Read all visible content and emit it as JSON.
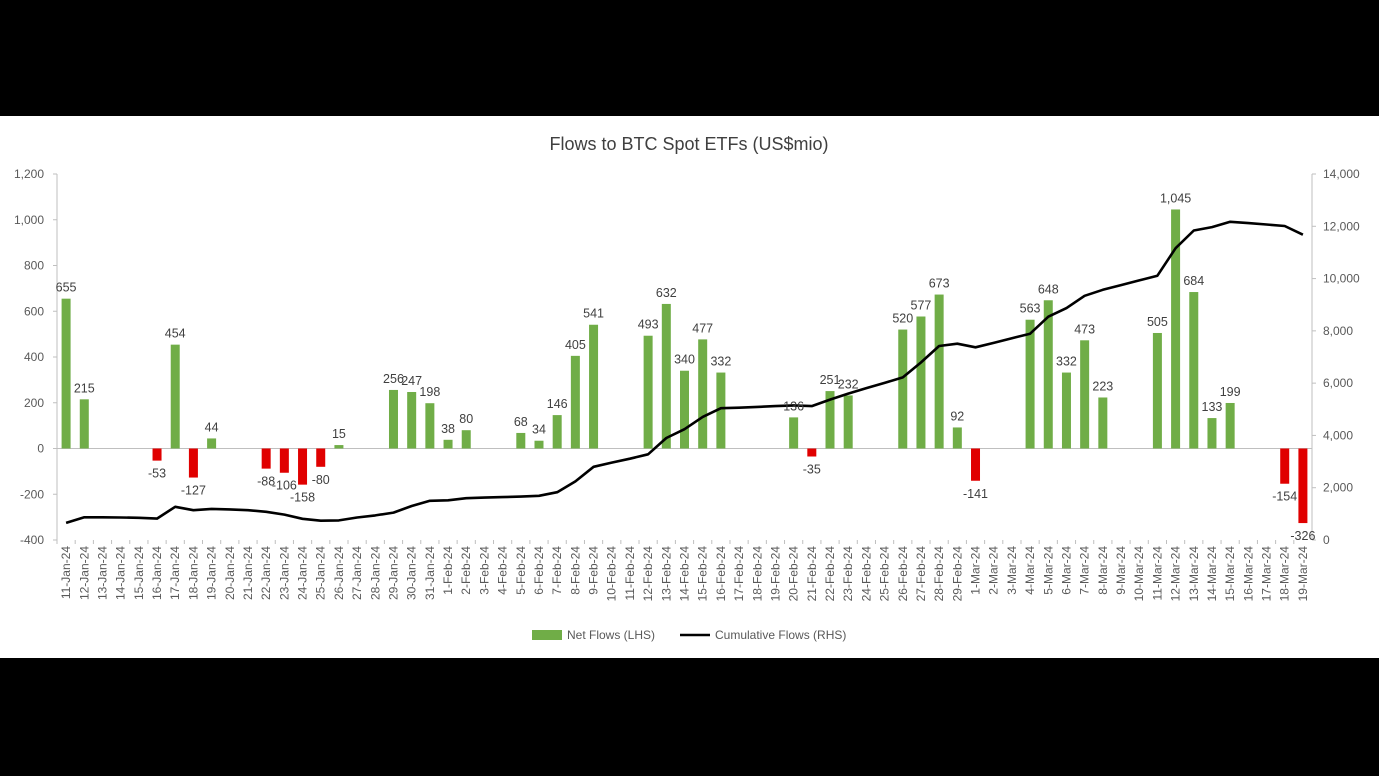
{
  "chart_data": {
    "type": "bar",
    "title": "Flows to BTC Spot ETFs (US$mio)",
    "categories": [
      "11-Jan-24",
      "12-Jan-24",
      "13-Jan-24",
      "14-Jan-24",
      "15-Jan-24",
      "16-Jan-24",
      "17-Jan-24",
      "18-Jan-24",
      "19-Jan-24",
      "20-Jan-24",
      "21-Jan-24",
      "22-Jan-24",
      "23-Jan-24",
      "24-Jan-24",
      "25-Jan-24",
      "26-Jan-24",
      "27-Jan-24",
      "28-Jan-24",
      "29-Jan-24",
      "30-Jan-24",
      "31-Jan-24",
      "1-Feb-24",
      "2-Feb-24",
      "3-Feb-24",
      "4-Feb-24",
      "5-Feb-24",
      "6-Feb-24",
      "7-Feb-24",
      "8-Feb-24",
      "9-Feb-24",
      "10-Feb-24",
      "11-Feb-24",
      "12-Feb-24",
      "13-Feb-24",
      "14-Feb-24",
      "15-Feb-24",
      "16-Feb-24",
      "17-Feb-24",
      "18-Feb-24",
      "19-Feb-24",
      "20-Feb-24",
      "21-Feb-24",
      "22-Feb-24",
      "23-Feb-24",
      "24-Feb-24",
      "25-Feb-24",
      "26-Feb-24",
      "27-Feb-24",
      "28-Feb-24",
      "29-Feb-24",
      "1-Mar-24",
      "2-Mar-24",
      "3-Mar-24",
      "4-Mar-24",
      "5-Mar-24",
      "6-Mar-24",
      "7-Mar-24",
      "8-Mar-24",
      "9-Mar-24",
      "10-Mar-24",
      "11-Mar-24",
      "12-Mar-24",
      "13-Mar-24",
      "14-Mar-24",
      "15-Mar-24",
      "16-Mar-24",
      "17-Mar-24",
      "18-Mar-24",
      "19-Mar-24"
    ],
    "series": [
      {
        "name": "Net Flows (LHS)",
        "axis": "left",
        "values": [
          655,
          215,
          null,
          null,
          null,
          -53,
          454,
          -127,
          44,
          null,
          null,
          -88,
          -106,
          -158,
          -80,
          15,
          null,
          null,
          256,
          247,
          198,
          38,
          80,
          null,
          null,
          68,
          34,
          146,
          405,
          541,
          null,
          null,
          493,
          632,
          340,
          477,
          332,
          null,
          null,
          null,
          136,
          -35,
          251,
          232,
          null,
          null,
          520,
          577,
          673,
          92,
          -141,
          null,
          null,
          563,
          648,
          332,
          473,
          223,
          null,
          null,
          505,
          1045,
          684,
          133,
          199,
          null,
          null,
          -154,
          -326
        ],
        "labels": [
          "655",
          "215",
          "",
          "",
          "",
          "-53",
          "454",
          "-127",
          "44",
          "",
          "",
          "-88",
          "-106",
          "-158",
          "-80",
          "15",
          "",
          "",
          "256",
          "247",
          "198",
          "38",
          "80",
          "",
          "",
          "68",
          "34",
          "146",
          "405",
          "541",
          "",
          "",
          "493",
          "632",
          "340",
          "477",
          "332",
          "",
          "",
          "",
          "136",
          "-35",
          "251",
          "232",
          "",
          "",
          "520",
          "577",
          "673",
          "92",
          "-141",
          "",
          "",
          "563",
          "648",
          "332",
          "473",
          "223",
          "",
          "",
          "505",
          "1,045",
          "684",
          "133",
          "199",
          "",
          "",
          "-154",
          "-326"
        ],
        "positive_color": "#70AD47",
        "negative_color": "#E00000"
      },
      {
        "name": "Cumulative Flows (RHS)",
        "axis": "right",
        "type": "line",
        "color": "#000000",
        "values": [
          655,
          870,
          870,
          860,
          850,
          820,
          1270,
          1140,
          1190,
          1170,
          1140,
          1080,
          970,
          810,
          740,
          750,
          860,
          940,
          1050,
          1300,
          1500,
          1520,
          1600,
          1620,
          1640,
          1660,
          1690,
          1830,
          2240,
          2800,
          2960,
          3110,
          3280,
          3900,
          4240,
          4710,
          5040,
          5060,
          5090,
          5120,
          5150,
          5120,
          5370,
          5600,
          5810,
          6010,
          6220,
          6790,
          7420,
          7510,
          7370,
          7540,
          7720,
          7890,
          8540,
          8870,
          9340,
          9570,
          9750,
          9930,
          10110,
          11160,
          11840,
          11970,
          12170,
          12120,
          12070,
          12010,
          11680
        ]
      }
    ],
    "y_left": {
      "min": -400,
      "max": 1200,
      "step": 200,
      "tick_labels": [
        "-400",
        "-200",
        "0",
        "200",
        "400",
        "600",
        "800",
        "1,000",
        "1,200"
      ]
    },
    "y_right": {
      "min": 0,
      "max": 14000,
      "step": 2000,
      "tick_labels": [
        "0",
        "2,000",
        "4,000",
        "6,000",
        "8,000",
        "10,000",
        "12,000",
        "14,000"
      ]
    },
    "legend": {
      "placement": "bottom",
      "entries": [
        "Net Flows (LHS)",
        "Cumulative Flows (RHS)"
      ]
    },
    "grid": false
  }
}
